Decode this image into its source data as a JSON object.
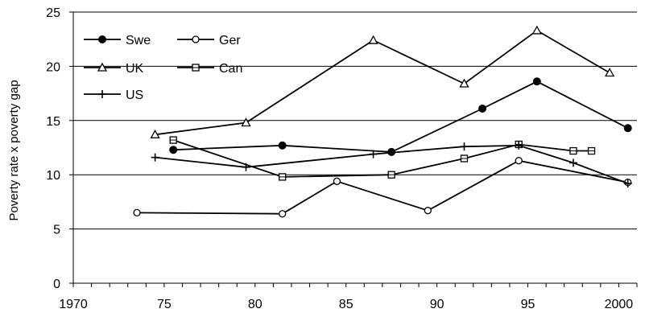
{
  "chart_data": {
    "type": "line",
    "title": "",
    "xlabel": "",
    "ylabel": "Poverty rate x poverty gap",
    "xlim": [
      1970,
      2001
    ],
    "ylim": [
      0,
      25
    ],
    "x_ticks": [
      1970,
      1975,
      1980,
      1985,
      1990,
      1995,
      2000
    ],
    "x_tick_labels": [
      "1970",
      "75",
      "80",
      "85",
      "90",
      "95",
      "2000"
    ],
    "y_ticks": [
      0,
      5,
      10,
      15,
      20,
      25
    ],
    "y_tick_labels": [
      "0",
      "5",
      "10",
      "15",
      "20",
      "25"
    ],
    "grid": "horizontal",
    "legend_position": "top-left",
    "series": [
      {
        "name": "Swe",
        "marker": "filled-circle",
        "points": [
          [
            1975.5,
            12.3
          ],
          [
            1981.5,
            12.7
          ],
          [
            1987.5,
            12.1
          ],
          [
            1992.5,
            16.1
          ],
          [
            1995.5,
            18.6
          ],
          [
            2000.5,
            14.3
          ]
        ]
      },
      {
        "name": "Ger",
        "marker": "open-circle",
        "points": [
          [
            1973.5,
            6.5
          ],
          [
            1981.5,
            6.4
          ],
          [
            1984.5,
            9.4
          ],
          [
            1989.5,
            6.7
          ],
          [
            1994.5,
            11.3
          ],
          [
            2000.5,
            9.3
          ]
        ]
      },
      {
        "name": "UK",
        "marker": "open-triangle",
        "points": [
          [
            1974.5,
            13.7
          ],
          [
            1979.5,
            14.8
          ],
          [
            1986.5,
            22.4
          ],
          [
            1991.5,
            18.4
          ],
          [
            1995.5,
            23.3
          ],
          [
            1999.5,
            19.4
          ]
        ]
      },
      {
        "name": "Can",
        "marker": "open-square",
        "points": [
          [
            1975.5,
            13.2
          ],
          [
            1981.5,
            9.8
          ],
          [
            1987.5,
            10.0
          ],
          [
            1991.5,
            11.5
          ],
          [
            1994.5,
            12.8
          ],
          [
            1997.5,
            12.2
          ],
          [
            1998.5,
            12.2
          ]
        ]
      },
      {
        "name": "US",
        "marker": "plus",
        "points": [
          [
            1974.5,
            11.6
          ],
          [
            1979.5,
            10.7
          ],
          [
            1986.5,
            11.9
          ],
          [
            1991.5,
            12.6
          ],
          [
            1994.5,
            12.7
          ],
          [
            1997.5,
            11.1
          ],
          [
            2000.5,
            9.2
          ]
        ]
      }
    ]
  }
}
